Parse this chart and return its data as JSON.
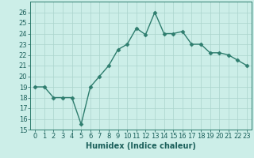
{
  "x": [
    0,
    1,
    2,
    3,
    4,
    5,
    6,
    7,
    8,
    9,
    10,
    11,
    12,
    13,
    14,
    15,
    16,
    17,
    18,
    19,
    20,
    21,
    22,
    23
  ],
  "y": [
    19,
    19,
    18,
    18,
    18,
    15.5,
    19,
    20,
    21,
    22.5,
    23,
    24.5,
    23.9,
    26,
    24,
    24,
    24.2,
    23,
    23,
    22.2,
    22.2,
    22,
    21.5,
    21
  ],
  "line_color": "#2e7d6e",
  "marker": "D",
  "markersize": 2.5,
  "linewidth": 1.0,
  "bg_color": "#cceee8",
  "grid_color": "#aad4cc",
  "xlabel": "Humidex (Indice chaleur)",
  "xlabel_fontsize": 7,
  "ylim": [
    15,
    27
  ],
  "yticks": [
    15,
    16,
    17,
    18,
    19,
    20,
    21,
    22,
    23,
    24,
    25,
    26
  ],
  "xticks": [
    0,
    1,
    2,
    3,
    4,
    5,
    6,
    7,
    8,
    9,
    10,
    11,
    12,
    13,
    14,
    15,
    16,
    17,
    18,
    19,
    20,
    21,
    22,
    23
  ],
  "tick_fontsize": 6,
  "tick_color": "#1a5f5a",
  "spine_color": "#2e7d6e"
}
